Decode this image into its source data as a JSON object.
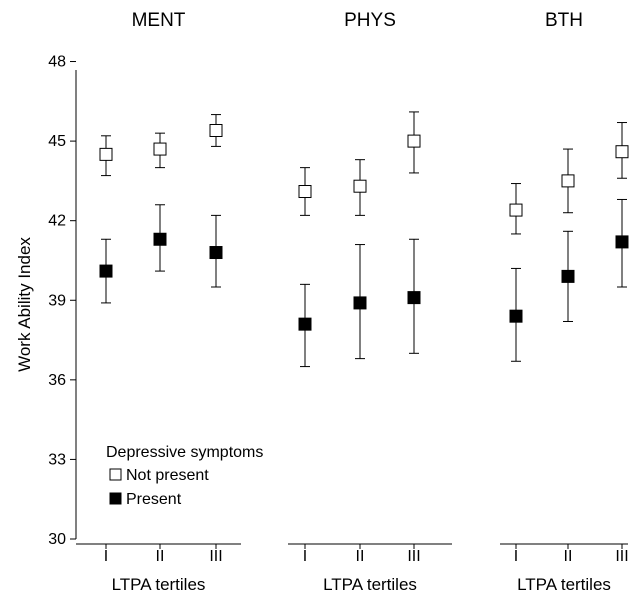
{
  "chart_data": {
    "type": "scatter",
    "ylabel": "Work Ability Index",
    "ylim": [
      30,
      49
    ],
    "yticks": [
      30,
      33,
      36,
      39,
      42,
      45,
      48
    ],
    "categories": [
      "I",
      "II",
      "III"
    ],
    "xlabel": "LTPA tertiles",
    "legend": {
      "title": "Depressive symptoms",
      "position": "bottom-left",
      "entries": [
        {
          "name": "Not present",
          "color": "#ffffff"
        },
        {
          "name": "Present",
          "color": "#000000"
        }
      ]
    },
    "panels": [
      {
        "title": "MENT",
        "series": [
          {
            "name": "Not present",
            "values": [
              44.5,
              44.7,
              45.4
            ],
            "lower": [
              43.7,
              44.0,
              44.8
            ],
            "upper": [
              45.2,
              45.3,
              46.0
            ]
          },
          {
            "name": "Present",
            "values": [
              40.1,
              41.3,
              40.8
            ],
            "lower": [
              38.9,
              40.1,
              39.5
            ],
            "upper": [
              41.3,
              42.6,
              42.2
            ]
          }
        ]
      },
      {
        "title": "PHYS",
        "series": [
          {
            "name": "Not present",
            "values": [
              43.1,
              43.3,
              45.0
            ],
            "lower": [
              42.2,
              42.2,
              43.8
            ],
            "upper": [
              44.0,
              44.3,
              46.1
            ]
          },
          {
            "name": "Present",
            "values": [
              38.1,
              38.9,
              39.1
            ],
            "lower": [
              36.5,
              36.8,
              37.0
            ],
            "upper": [
              39.6,
              41.1,
              41.3
            ]
          }
        ]
      },
      {
        "title": "BTH",
        "series": [
          {
            "name": "Not present",
            "values": [
              42.4,
              43.5,
              44.6
            ],
            "lower": [
              41.5,
              42.3,
              43.6
            ],
            "upper": [
              43.4,
              44.7,
              45.7
            ]
          },
          {
            "name": "Present",
            "values": [
              38.4,
              39.9,
              41.2
            ],
            "lower": [
              36.7,
              38.2,
              39.5
            ],
            "upper": [
              40.2,
              41.6,
              42.8
            ]
          }
        ]
      }
    ]
  }
}
